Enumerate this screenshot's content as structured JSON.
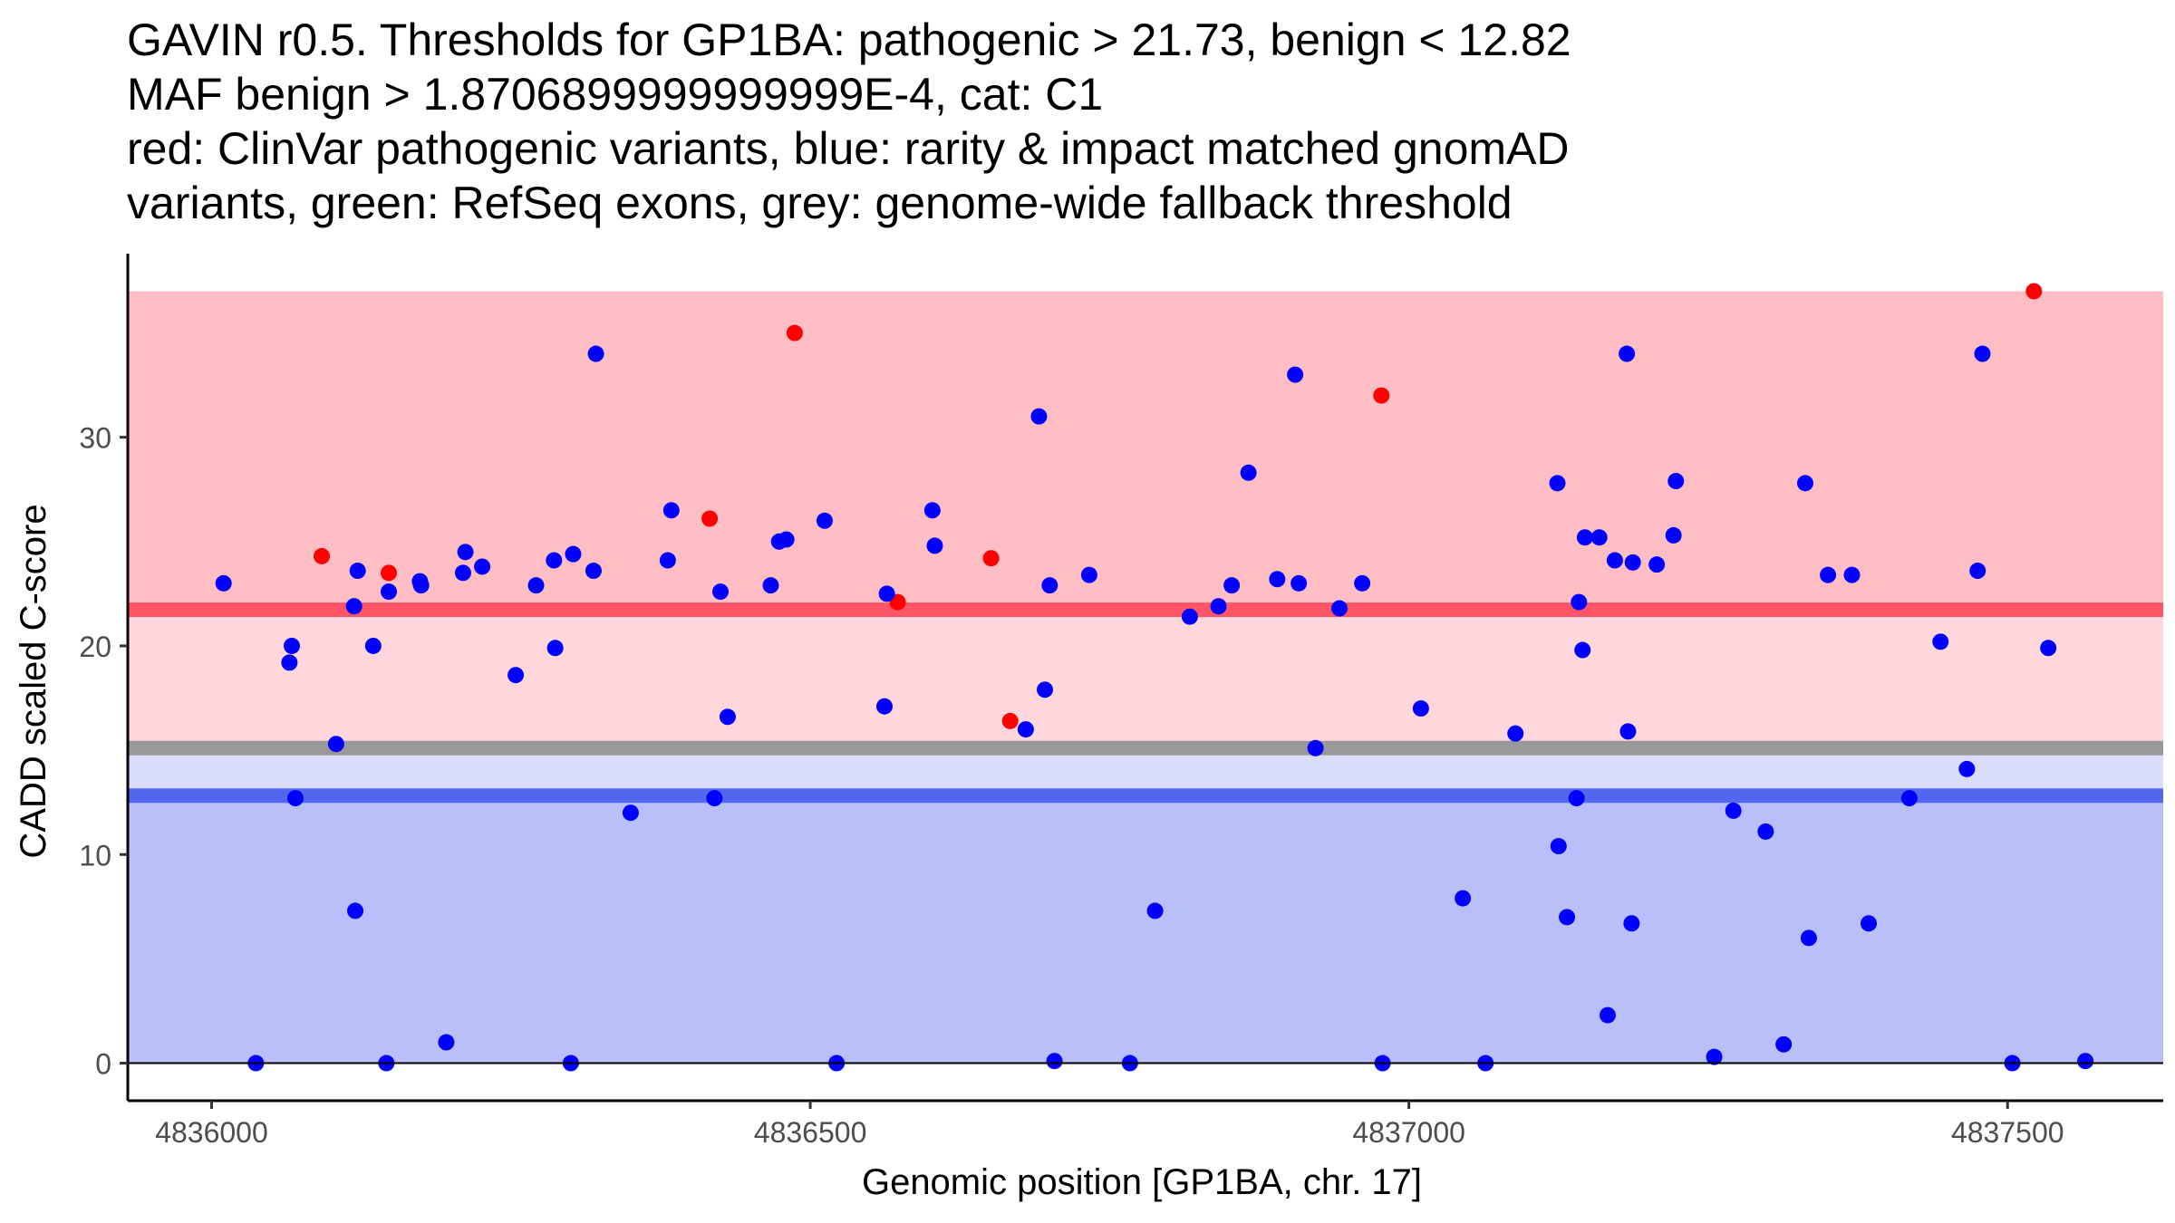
{
  "chart_data": {
    "type": "scatter",
    "title_lines": [
      "GAVIN r0.5. Thresholds for GP1BA: pathogenic > 21.73, benign < 12.82",
      "MAF benign > 1.8706899999999999E-4, cat: C1",
      "red: ClinVar pathogenic variants, blue: rarity & impact matched gnomAD",
      "variants, green: RefSeq exons, grey: genome-wide fallback threshold"
    ],
    "xlabel": "Genomic position [GP1BA, chr. 17]",
    "ylabel": "CADD scaled C-score",
    "xlim": [
      4835930,
      4837630
    ],
    "ylim": [
      -1.8,
      38.8
    ],
    "x_ticks": [
      4836000,
      4836500,
      4837000,
      4837500
    ],
    "x_tick_labels": [
      "4836000",
      "4836500",
      "4837000",
      "4837500"
    ],
    "y_ticks": [
      0,
      10,
      20,
      30
    ],
    "y_tick_labels": [
      "0",
      "10",
      "20",
      "30"
    ],
    "grid": false,
    "bands": [
      {
        "name": "pathogenic-zone",
        "y0": 21.73,
        "y1": 37,
        "color": "#ffbec4"
      },
      {
        "name": "uncertain-upper-zone",
        "y0": 15.1,
        "y1": 21.73,
        "color": "#ffd7dc"
      },
      {
        "name": "uncertain-lower-zone",
        "y0": 12.82,
        "y1": 15.1,
        "color": "#d9dcfb"
      },
      {
        "name": "benign-zone",
        "y0": 0,
        "y1": 12.82,
        "color": "#b9bff8"
      }
    ],
    "threshold_lines": [
      {
        "name": "pathogenic-threshold",
        "y": 21.73,
        "color": "#ff5566"
      },
      {
        "name": "fallback-threshold",
        "y": 15.1,
        "color": "#999999"
      },
      {
        "name": "benign-threshold",
        "y": 12.82,
        "color": "#5566ee"
      }
    ],
    "series": [
      {
        "name": "ClinVar pathogenic",
        "color": "#ff0000",
        "points": [
          [
            4836092,
            24.3
          ],
          [
            4836148,
            23.5
          ],
          [
            4836416,
            26.1
          ],
          [
            4836487,
            35.0
          ],
          [
            4836573,
            22.1
          ],
          [
            4836651,
            24.2
          ],
          [
            4836667,
            16.4
          ],
          [
            4836977,
            32.0
          ],
          [
            4837522,
            37.0
          ]
        ]
      },
      {
        "name": "gnomAD matched",
        "color": "#0000ff",
        "points": [
          [
            4836010,
            23.0
          ],
          [
            4836037,
            0.0
          ],
          [
            4836065,
            19.2
          ],
          [
            4836067,
            20.0
          ],
          [
            4836070,
            12.7
          ],
          [
            4836104,
            15.3
          ],
          [
            4836119,
            21.9
          ],
          [
            4836120,
            7.3
          ],
          [
            4836122,
            23.6
          ],
          [
            4836135,
            20.0
          ],
          [
            4836146,
            0.0
          ],
          [
            4836148,
            22.6
          ],
          [
            4836174,
            23.1
          ],
          [
            4836175,
            22.9
          ],
          [
            4836196,
            1.0
          ],
          [
            4836210,
            23.5
          ],
          [
            4836212,
            24.5
          ],
          [
            4836226,
            23.8
          ],
          [
            4836254,
            18.6
          ],
          [
            4836271,
            22.9
          ],
          [
            4836286,
            24.1
          ],
          [
            4836287,
            19.9
          ],
          [
            4836300,
            0.0
          ],
          [
            4836302,
            24.4
          ],
          [
            4836319,
            23.6
          ],
          [
            4836321,
            34.0
          ],
          [
            4836350,
            12.0
          ],
          [
            4836381,
            24.1
          ],
          [
            4836384,
            26.5
          ],
          [
            4836420,
            12.7
          ],
          [
            4836425,
            22.6
          ],
          [
            4836431,
            16.6
          ],
          [
            4836467,
            22.9
          ],
          [
            4836474,
            25.0
          ],
          [
            4836480,
            25.1
          ],
          [
            4836512,
            26.0
          ],
          [
            4836522,
            0.0
          ],
          [
            4836562,
            17.1
          ],
          [
            4836564,
            22.5
          ],
          [
            4836602,
            26.5
          ],
          [
            4836604,
            24.8
          ],
          [
            4836680,
            16.0
          ],
          [
            4836691,
            31.0
          ],
          [
            4836696,
            17.9
          ],
          [
            4836700,
            22.9
          ],
          [
            4836704,
            0.1
          ],
          [
            4836733,
            23.4
          ],
          [
            4836767,
            0.0
          ],
          [
            4836788,
            7.3
          ],
          [
            4836817,
            21.4
          ],
          [
            4836841,
            21.9
          ],
          [
            4836852,
            22.9
          ],
          [
            4836866,
            28.3
          ],
          [
            4836890,
            23.2
          ],
          [
            4836905,
            33.0
          ],
          [
            4836908,
            23.0
          ],
          [
            4836922,
            15.1
          ],
          [
            4836942,
            21.8
          ],
          [
            4836961,
            23.0
          ],
          [
            4836978,
            0.0
          ],
          [
            4837010,
            17.0
          ],
          [
            4837045,
            7.9
          ],
          [
            4837064,
            0.0
          ],
          [
            4837089,
            15.8
          ],
          [
            4837124,
            27.8
          ],
          [
            4837125,
            10.4
          ],
          [
            4837132,
            7.0
          ],
          [
            4837140,
            12.7
          ],
          [
            4837142,
            22.1
          ],
          [
            4837145,
            19.8
          ],
          [
            4837147,
            25.2
          ],
          [
            4837159,
            25.2
          ],
          [
            4837166,
            2.3
          ],
          [
            4837172,
            24.1
          ],
          [
            4837182,
            34.0
          ],
          [
            4837183,
            15.9
          ],
          [
            4837186,
            6.7
          ],
          [
            4837187,
            24.0
          ],
          [
            4837207,
            23.9
          ],
          [
            4837221,
            25.3
          ],
          [
            4837223,
            27.9
          ],
          [
            4837255,
            0.3
          ],
          [
            4837271,
            12.1
          ],
          [
            4837298,
            11.1
          ],
          [
            4837313,
            0.9
          ],
          [
            4837331,
            27.8
          ],
          [
            4837334,
            6.0
          ],
          [
            4837350,
            23.4
          ],
          [
            4837370,
            23.4
          ],
          [
            4837384,
            6.7
          ],
          [
            4837418,
            12.7
          ],
          [
            4837444,
            20.2
          ],
          [
            4837466,
            14.1
          ],
          [
            4837475,
            23.6
          ],
          [
            4837479,
            34.0
          ],
          [
            4837504,
            0.0
          ],
          [
            4837534,
            19.9
          ],
          [
            4837565,
            0.1
          ]
        ]
      }
    ]
  }
}
